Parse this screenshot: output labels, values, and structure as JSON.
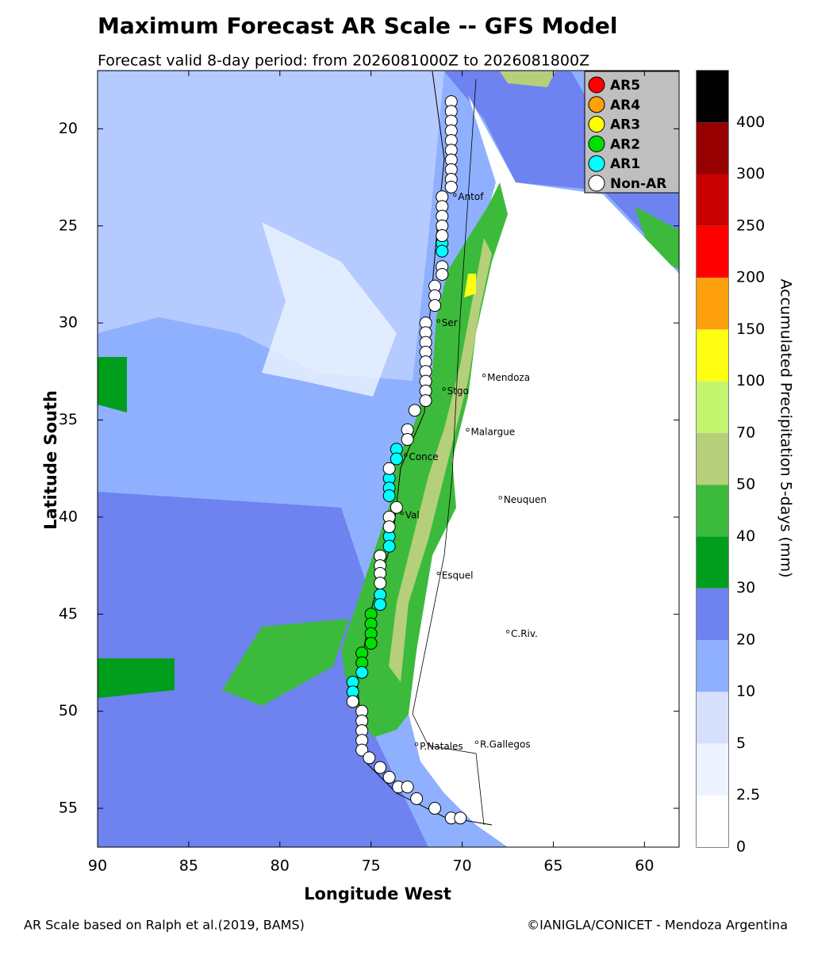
{
  "chart_data": {
    "type": "map",
    "title": "Maximum Forecast AR Scale -- GFS Model",
    "subtitle": "Forecast valid 8-day period: from 2026081000Z to 2026081800Z",
    "x_label": "Longitude West",
    "y_label": "Latitude South",
    "xlim": [
      90,
      58.1
    ],
    "ylim": [
      17,
      57
    ],
    "xticks": [
      90,
      85,
      80,
      75,
      70,
      65,
      60
    ],
    "yticks": [
      20,
      25,
      30,
      35,
      40,
      45,
      50,
      55
    ],
    "colorbar": {
      "label": "Accumulated Precipitation 5-days (mm)",
      "levels": [
        0,
        2.5,
        5,
        10,
        20,
        30,
        40,
        50,
        70,
        100,
        150,
        200,
        250,
        300,
        400
      ],
      "colors": [
        "#ffffff",
        "#eef4ff",
        "#d6e0fd",
        "#8fb0ff",
        "#6e82f0",
        "#009e1c",
        "#3cba3c",
        "#b5cf7a",
        "#c3f56f",
        "#ffff14",
        "#ffa00f",
        "#ff0000",
        "#c80000",
        "#960000",
        "#000000"
      ]
    },
    "legend_position": "upper right",
    "series": [
      {
        "name": "AR5",
        "color": "#ff0000",
        "x": [],
        "y": []
      },
      {
        "name": "AR4",
        "color": "#ffa00f",
        "x": [],
        "y": []
      },
      {
        "name": "AR3",
        "color": "#ffff00",
        "x": [],
        "y": []
      },
      {
        "name": "AR2",
        "color": "#00e000",
        "x": [
          75.0,
          75.0,
          75.0,
          75.0,
          75.5,
          75.5
        ],
        "y": [
          45.0,
          45.5,
          46.0,
          46.5,
          47.0,
          47.5
        ]
      },
      {
        "name": "AR1",
        "color": "#00ffff",
        "x": [
          71.1,
          71.1,
          73.6,
          73.6,
          74.0,
          74.0,
          74.0,
          74.0,
          74.0,
          74.5,
          74.5,
          75.5,
          76.0,
          76.0
        ],
        "y": [
          25.9,
          26.3,
          36.5,
          37.0,
          38.0,
          38.5,
          38.9,
          41.0,
          41.5,
          44.0,
          44.5,
          48.0,
          48.5,
          49.0
        ]
      },
      {
        "name": "Non-AR",
        "color": "#ffffff",
        "x": [
          70.6,
          70.6,
          70.6,
          70.6,
          70.6,
          70.6,
          70.6,
          70.6,
          70.6,
          70.6,
          71.1,
          71.1,
          71.1,
          71.1,
          71.1,
          71.1,
          71.1,
          71.5,
          71.5,
          71.5,
          72.0,
          72.0,
          72.0,
          72.0,
          72.0,
          72.0,
          72.0,
          72.0,
          72.0,
          72.6,
          73.0,
          73.0,
          74.0,
          73.6,
          74.0,
          74.0,
          74.5,
          74.5,
          74.5,
          74.5,
          76.0,
          75.5,
          75.5,
          75.5,
          75.5,
          75.5,
          75.1,
          74.5,
          74.0,
          73.5,
          73.0,
          72.5,
          71.5,
          70.6,
          70.1
        ],
        "y": [
          18.6,
          19.1,
          19.6,
          20.1,
          20.6,
          21.1,
          21.6,
          22.1,
          22.6,
          23.0,
          23.5,
          24.0,
          24.5,
          25.0,
          25.5,
          27.1,
          27.5,
          28.1,
          28.6,
          29.1,
          30.0,
          30.5,
          31.0,
          31.5,
          32.0,
          32.5,
          33.0,
          33.5,
          34.0,
          34.5,
          35.5,
          36.0,
          37.5,
          39.5,
          40.0,
          40.5,
          42.0,
          42.5,
          42.9,
          43.4,
          49.5,
          50.0,
          50.5,
          51.0,
          51.5,
          52.0,
          52.4,
          52.9,
          53.4,
          53.9,
          53.9,
          54.5,
          55.0,
          55.5,
          55.5
        ]
      }
    ],
    "cities": [
      {
        "name": "Antof",
        "lon": 70.4,
        "lat": 23.4
      },
      {
        "name": "Ser",
        "lon": 71.3,
        "lat": 29.9
      },
      {
        "name": "Mendoza",
        "lon": 68.8,
        "lat": 32.7
      },
      {
        "name": "Stgo",
        "lon": 71.0,
        "lat": 33.4
      },
      {
        "name": "Malargue",
        "lon": 69.7,
        "lat": 35.5
      },
      {
        "name": "Conce",
        "lon": 73.1,
        "lat": 36.8
      },
      {
        "name": "Neuquen",
        "lon": 67.9,
        "lat": 39.0
      },
      {
        "name": "Val",
        "lon": 73.3,
        "lat": 39.8
      },
      {
        "name": "Esquel",
        "lon": 71.3,
        "lat": 42.9
      },
      {
        "name": "C.Riv.",
        "lon": 67.5,
        "lat": 45.9
      },
      {
        "name": "P.Natales",
        "lon": 72.5,
        "lat": 51.7
      },
      {
        "name": "R.Gallegos",
        "lon": 69.2,
        "lat": 51.6
      }
    ],
    "footer_left": "AR Scale based on Ralph et al.(2019, BAMS)",
    "footer_right": "©IANIGLA/CONICET - Mendoza Argentina"
  }
}
